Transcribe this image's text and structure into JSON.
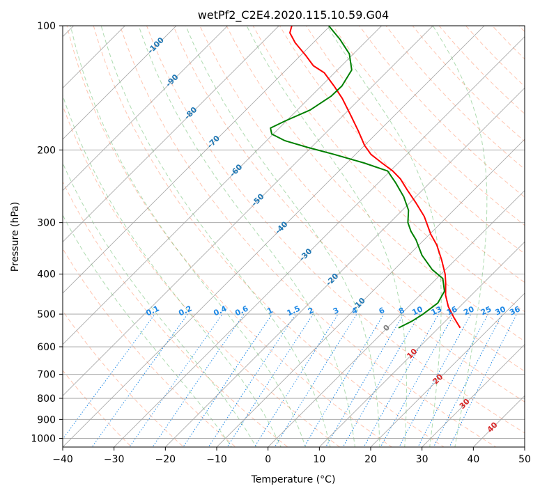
{
  "chart_data": {
    "type": "line",
    "subtype": "skew-t log-p diagram",
    "title": "wetPf2_C2E4.2020.115.10.59.G04",
    "xlabel": "Temperature (°C)",
    "ylabel": "Pressure (hPa)",
    "xlim": [
      -40,
      50
    ],
    "ylim": [
      1050,
      100
    ],
    "x_ticks": [
      -40,
      -30,
      -20,
      -10,
      0,
      10,
      20,
      30,
      40,
      50
    ],
    "x_tick_labels": [
      "−40",
      "−30",
      "−20",
      "−10",
      "0",
      "10",
      "20",
      "30",
      "40",
      "50"
    ],
    "y_ticks": [
      1000,
      900,
      800,
      700,
      600,
      500,
      400,
      300,
      200,
      100
    ],
    "y_tick_labels": [
      "1000",
      "900",
      "800",
      "700",
      "600",
      "500",
      "400",
      "300",
      "200",
      "100"
    ],
    "grid": true,
    "colors": {
      "temperature": "#ff0000",
      "dewpoint": "#008000",
      "isotherm": "#888888",
      "dry_adiabat": "#ff7f50",
      "moist_adiabat": "#4caf50",
      "mixing_ratio": "#1e88e5",
      "isotherm_label": "#1f77b4",
      "dry_adiabat_label": "#d62728",
      "zero_label": "#808080"
    },
    "series": [
      {
        "name": "Temperature",
        "color": "#ff0000",
        "points": [
          {
            "p": 540,
            "t": 14.2
          },
          {
            "p": 510,
            "t": 11.0
          },
          {
            "p": 480,
            "t": 7.8
          },
          {
            "p": 450,
            "t": 5.0
          },
          {
            "p": 420,
            "t": 2.6
          },
          {
            "p": 400,
            "t": 0.8
          },
          {
            "p": 370,
            "t": -2.6
          },
          {
            "p": 340,
            "t": -6.5
          },
          {
            "p": 320,
            "t": -9.8
          },
          {
            "p": 290,
            "t": -14.5
          },
          {
            "p": 270,
            "t": -18.5
          },
          {
            "p": 250,
            "t": -23.0
          },
          {
            "p": 235,
            "t": -26.5
          },
          {
            "p": 225,
            "t": -29.5
          },
          {
            "p": 215,
            "t": -33.2
          },
          {
            "p": 205,
            "t": -37.0
          },
          {
            "p": 195,
            "t": -40.0
          },
          {
            "p": 180,
            "t": -44.0
          },
          {
            "p": 165,
            "t": -48.5
          },
          {
            "p": 150,
            "t": -53.5
          },
          {
            "p": 140,
            "t": -57.5
          },
          {
            "p": 130,
            "t": -62.0
          },
          {
            "p": 125,
            "t": -65.5
          },
          {
            "p": 118,
            "t": -69.0
          },
          {
            "p": 110,
            "t": -73.5
          },
          {
            "p": 104,
            "t": -76.5
          },
          {
            "p": 100,
            "t": -77.5
          }
        ]
      },
      {
        "name": "Dewpoint",
        "color": "#008000",
        "points": [
          {
            "p": 540,
            "t": 2.2
          },
          {
            "p": 520,
            "t": 3.5
          },
          {
            "p": 500,
            "t": 4.3
          },
          {
            "p": 470,
            "t": 5.0
          },
          {
            "p": 440,
            "t": 4.0
          },
          {
            "p": 410,
            "t": 1.2
          },
          {
            "p": 390,
            "t": -2.6
          },
          {
            "p": 360,
            "t": -7.4
          },
          {
            "p": 330,
            "t": -11.6
          },
          {
            "p": 315,
            "t": -14.2
          },
          {
            "p": 300,
            "t": -16.5
          },
          {
            "p": 280,
            "t": -18.8
          },
          {
            "p": 260,
            "t": -22.3
          },
          {
            "p": 240,
            "t": -26.7
          },
          {
            "p": 225,
            "t": -30.5
          },
          {
            "p": 215,
            "t": -36.7
          },
          {
            "p": 205,
            "t": -44.2
          },
          {
            "p": 197,
            "t": -50.8
          },
          {
            "p": 190,
            "t": -56.4
          },
          {
            "p": 183,
            "t": -60.3
          },
          {
            "p": 177,
            "t": -61.7
          },
          {
            "p": 170,
            "t": -60.2
          },
          {
            "p": 160,
            "t": -57.5
          },
          {
            "p": 148,
            "t": -56.1
          },
          {
            "p": 140,
            "t": -56.0
          },
          {
            "p": 128,
            "t": -57.2
          },
          {
            "p": 117,
            "t": -60.8
          },
          {
            "p": 108,
            "t": -65.4
          },
          {
            "p": 100,
            "t": -70.3
          }
        ]
      }
    ],
    "background_lines": {
      "isotherms_C": [
        -140,
        -130,
        -120,
        -110,
        -100,
        -90,
        -80,
        -70,
        -60,
        -50,
        -40,
        -30,
        -20,
        -10,
        0,
        10,
        20,
        30,
        40,
        50
      ],
      "dry_adiabats_C": [
        -30,
        -20,
        -10,
        0,
        10,
        20,
        30,
        40,
        50,
        60,
        70,
        80,
        90,
        100,
        110,
        120,
        130,
        140,
        150,
        160,
        170,
        180,
        190,
        200
      ],
      "moist_adiabats_C": [
        -10,
        -5,
        0,
        5,
        10,
        15,
        20,
        25,
        30,
        35
      ],
      "mixing_ratios_gkg": [
        0.1,
        0.2,
        0.4,
        0.6,
        1,
        1.5,
        2,
        3,
        4,
        6,
        8,
        10,
        13,
        16,
        20,
        25,
        30,
        36
      ]
    },
    "annotations": {
      "isotherm_labels": [
        {
          "text": "-100",
          "p": 111,
          "t": -100
        },
        {
          "text": "-90",
          "p": 135,
          "t": -90
        },
        {
          "text": "-80",
          "p": 162,
          "t": -80
        },
        {
          "text": "-70",
          "p": 190,
          "t": -70
        },
        {
          "text": "-60",
          "p": 223,
          "t": -60
        },
        {
          "text": "-50",
          "p": 263,
          "t": -50
        },
        {
          "text": "-40",
          "p": 307,
          "t": -40
        },
        {
          "text": "-30",
          "p": 357,
          "t": -30
        },
        {
          "text": "-20",
          "p": 410,
          "t": -20
        },
        {
          "text": "-10",
          "p": 470,
          "t": -10
        },
        {
          "text": "0",
          "p": 537,
          "t": 0
        }
      ],
      "dry_adiabat_labels": [
        {
          "text": "10",
          "p": 620,
          "t": 10
        },
        {
          "text": "20",
          "p": 715,
          "t": 20
        },
        {
          "text": "30",
          "p": 820,
          "t": 30
        },
        {
          "text": "40",
          "p": 935,
          "t": 40
        }
      ],
      "mixing_ratio_labels": [
        "0.1",
        "0.2",
        "0.4",
        "0.6",
        "1",
        "1.5",
        "2",
        "3",
        "4",
        "6",
        "8",
        "10",
        "13",
        "16",
        "20",
        "25",
        "30",
        "36"
      ]
    }
  }
}
